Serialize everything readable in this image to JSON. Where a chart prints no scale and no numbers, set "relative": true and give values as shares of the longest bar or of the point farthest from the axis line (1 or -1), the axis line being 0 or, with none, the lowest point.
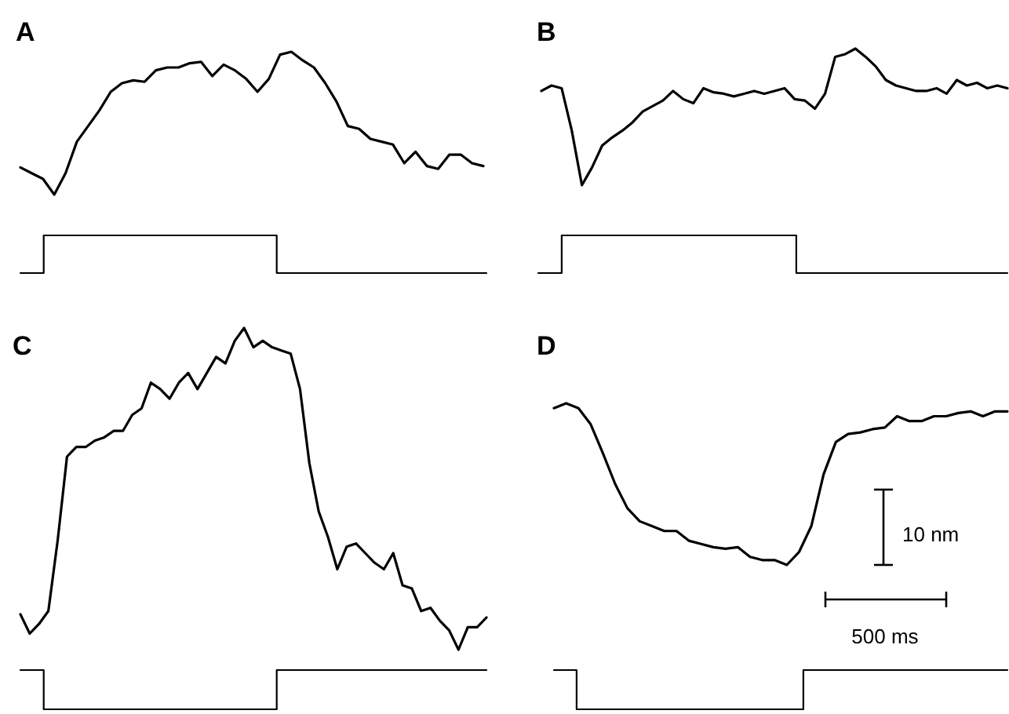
{
  "chart_data": [
    {
      "type": "line",
      "title": "A",
      "relative": true,
      "color": "#000000",
      "categories": [
        null,
        null,
        null,
        null,
        null,
        null,
        null,
        null,
        null,
        null,
        null,
        null,
        null,
        null,
        null,
        null,
        null,
        null,
        null,
        null,
        null,
        null,
        null,
        null,
        null,
        null,
        null,
        null,
        null,
        null,
        null,
        null,
        null,
        null,
        null,
        null,
        null,
        null,
        null,
        null,
        null,
        null
      ],
      "values": [
        0.19,
        0.15,
        0.11,
        0,
        0.15,
        0.37,
        0.48,
        0.59,
        0.72,
        0.78,
        0.8,
        0.79,
        0.87,
        0.89,
        0.89,
        0.92,
        0.93,
        0.83,
        0.91,
        0.87,
        0.81,
        0.72,
        0.81,
        0.98,
        1,
        0.94,
        0.89,
        0.78,
        0.65,
        0.48,
        0.46,
        0.39,
        0.37,
        0.35,
        0.22,
        0.3,
        0.2,
        0.18,
        0.28,
        0.28,
        0.22,
        0.2
      ]
    },
    {
      "type": "step",
      "relative": true,
      "color": "#000000",
      "categories": [
        null,
        null,
        null,
        null,
        null,
        null,
        null,
        null,
        null,
        null,
        null,
        null,
        null,
        null,
        null,
        null,
        null,
        null,
        null,
        null,
        null
      ],
      "values": [
        0,
        1,
        1,
        1,
        1,
        1,
        1,
        1,
        1,
        1,
        1,
        0,
        0,
        0,
        0,
        0,
        0,
        0,
        0,
        0,
        0
      ]
    },
    {
      "type": "line",
      "title": "B",
      "relative": true,
      "color": "#000000",
      "categories": [
        null,
        null,
        null,
        null,
        null,
        null,
        null,
        null,
        null,
        null,
        null,
        null,
        null,
        null,
        null,
        null,
        null,
        null,
        null,
        null,
        null,
        null,
        null,
        null,
        null,
        null,
        null,
        null,
        null,
        null,
        null,
        null,
        null,
        null,
        null,
        null,
        null,
        null,
        null,
        null,
        null,
        null,
        null,
        null,
        null,
        null,
        null
      ],
      "values": [
        0.69,
        0.73,
        0.71,
        0.4,
        0,
        0.13,
        0.29,
        0.35,
        0.4,
        0.46,
        0.54,
        0.58,
        0.62,
        0.69,
        0.63,
        0.6,
        0.71,
        0.68,
        0.67,
        0.65,
        0.67,
        0.69,
        0.67,
        0.69,
        0.71,
        0.63,
        0.62,
        0.56,
        0.67,
        0.94,
        0.96,
        1,
        0.94,
        0.87,
        0.77,
        0.73,
        0.71,
        0.69,
        0.69,
        0.71,
        0.67,
        0.77,
        0.73,
        0.75,
        0.71,
        0.73,
        0.71
      ]
    },
    {
      "type": "step",
      "relative": true,
      "color": "#000000",
      "categories": [
        null,
        null,
        null,
        null,
        null,
        null,
        null,
        null,
        null,
        null,
        null,
        null,
        null,
        null,
        null,
        null,
        null,
        null,
        null,
        null,
        null
      ],
      "values": [
        0,
        1,
        1,
        1,
        1,
        1,
        1,
        1,
        1,
        1,
        1,
        0,
        0,
        0,
        0,
        0,
        0,
        0,
        0,
        0,
        0
      ]
    },
    {
      "type": "line",
      "title": "C",
      "relative": true,
      "color": "#000000",
      "categories": [
        null,
        null,
        null,
        null,
        null,
        null,
        null,
        null,
        null,
        null,
        null,
        null,
        null,
        null,
        null,
        null,
        null,
        null,
        null,
        null,
        null,
        null,
        null,
        null,
        null,
        null,
        null,
        null,
        null,
        null,
        null,
        null,
        null,
        null,
        null,
        null,
        null,
        null,
        null,
        null,
        null,
        null,
        null,
        null,
        null,
        null,
        null,
        null,
        null,
        null,
        null
      ],
      "values": [
        0.11,
        0.05,
        0.08,
        0.12,
        0.34,
        0.6,
        0.63,
        0.63,
        0.65,
        0.66,
        0.68,
        0.68,
        0.73,
        0.75,
        0.83,
        0.81,
        0.78,
        0.83,
        0.86,
        0.81,
        0.86,
        0.91,
        0.89,
        0.96,
        1,
        0.94,
        0.96,
        0.94,
        0.93,
        0.92,
        0.81,
        0.58,
        0.43,
        0.35,
        0.25,
        0.32,
        0.33,
        0.3,
        0.27,
        0.25,
        0.3,
        0.2,
        0.19,
        0.12,
        0.13,
        0.09,
        0.06,
        0,
        0.07,
        0.07,
        0.1
      ]
    },
    {
      "type": "step",
      "relative": true,
      "color": "#000000",
      "categories": [
        null,
        null,
        null,
        null,
        null,
        null,
        null,
        null,
        null,
        null,
        null,
        null,
        null,
        null,
        null,
        null,
        null,
        null,
        null,
        null,
        null
      ],
      "values": [
        1,
        0,
        0,
        0,
        0,
        0,
        0,
        0,
        0,
        0,
        0,
        1,
        1,
        1,
        1,
        1,
        1,
        1,
        1,
        1,
        1
      ]
    },
    {
      "type": "line",
      "title": "D",
      "relative": true,
      "color": "#000000",
      "annotations": [
        "10 nm",
        "500 ms"
      ],
      "categories": [
        null,
        null,
        null,
        null,
        null,
        null,
        null,
        null,
        null,
        null,
        null,
        null,
        null,
        null,
        null,
        null,
        null,
        null,
        null,
        null,
        null,
        null,
        null,
        null,
        null,
        null,
        null,
        null,
        null,
        null,
        null,
        null,
        null,
        null,
        null,
        null,
        null,
        null
      ],
      "values": [
        0.97,
        1,
        0.97,
        0.87,
        0.69,
        0.5,
        0.35,
        0.27,
        0.24,
        0.21,
        0.21,
        0.15,
        0.13,
        0.11,
        0.1,
        0.11,
        0.05,
        0.03,
        0.03,
        0,
        0.08,
        0.24,
        0.56,
        0.76,
        0.81,
        0.82,
        0.84,
        0.85,
        0.92,
        0.89,
        0.89,
        0.92,
        0.92,
        0.94,
        0.95,
        0.92,
        0.95,
        0.95
      ]
    },
    {
      "type": "step",
      "relative": true,
      "color": "#000000",
      "categories": [
        null,
        null,
        null,
        null,
        null,
        null,
        null,
        null,
        null,
        null,
        null,
        null,
        null,
        null,
        null,
        null,
        null,
        null,
        null,
        null,
        null
      ],
      "values": [
        1,
        0,
        0,
        0,
        0,
        0,
        0,
        0,
        0,
        0,
        0,
        1,
        1,
        1,
        1,
        1,
        1,
        1,
        1,
        1,
        1
      ]
    }
  ]
}
